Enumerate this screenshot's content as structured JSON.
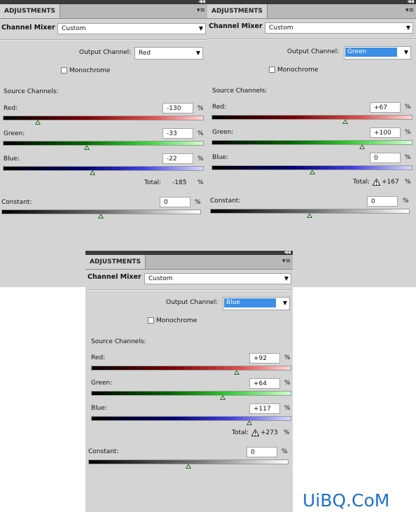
{
  "panels": [
    {
      "tab": "ADJUSTMENTS",
      "preset_label": "Channel Mixer",
      "preset_value": "Custom",
      "output_channel_label": "Output Channel:",
      "output_channel": "Red",
      "monochrome_label": "Monochrome",
      "source_label": "Source Channels:",
      "red_label": "Red:",
      "red_value": "-130",
      "green_label": "Green:",
      "green_value": "-33",
      "blue_label": "Blue:",
      "blue_value": "-22",
      "total_label": "Total:",
      "total_value": "-185",
      "constant_label": "Constant:",
      "constant_value": "0",
      "pct": "%"
    },
    {
      "tab": "ADJUSTMENTS",
      "preset_label": "Channel Mixer",
      "preset_value": "Custom",
      "output_channel_label": "Output Channel:",
      "output_channel": "Green",
      "monochrome_label": "Monochrome",
      "source_label": "Source Channels:",
      "red_label": "Red:",
      "red_value": "+67",
      "green_label": "Green:",
      "green_value": "+100",
      "blue_label": "Blue:",
      "blue_value": "0",
      "total_label": "Total:",
      "total_value": "+167",
      "constant_label": "Constant:",
      "constant_value": "0",
      "pct": "%"
    },
    {
      "tab": "ADJUSTMENTS",
      "preset_label": "Channel Mixer",
      "preset_value": "Custom",
      "output_channel_label": "Output Channel:",
      "output_channel": "Blue",
      "monochrome_label": "Monochrome",
      "source_label": "Source Channels:",
      "red_label": "Red:",
      "red_value": "+92",
      "green_label": "Green:",
      "green_value": "+64",
      "blue_label": "Blue:",
      "blue_value": "+117",
      "total_label": "Total:",
      "total_value": "+273",
      "constant_label": "Constant:",
      "constant_value": "0",
      "pct": "%"
    }
  ],
  "watermark": "UiBQ.CoM",
  "colors": {
    "panel_bg": "#d4d4d4",
    "selection": "#3a8ee6",
    "watermark": "#1f6fd0"
  }
}
